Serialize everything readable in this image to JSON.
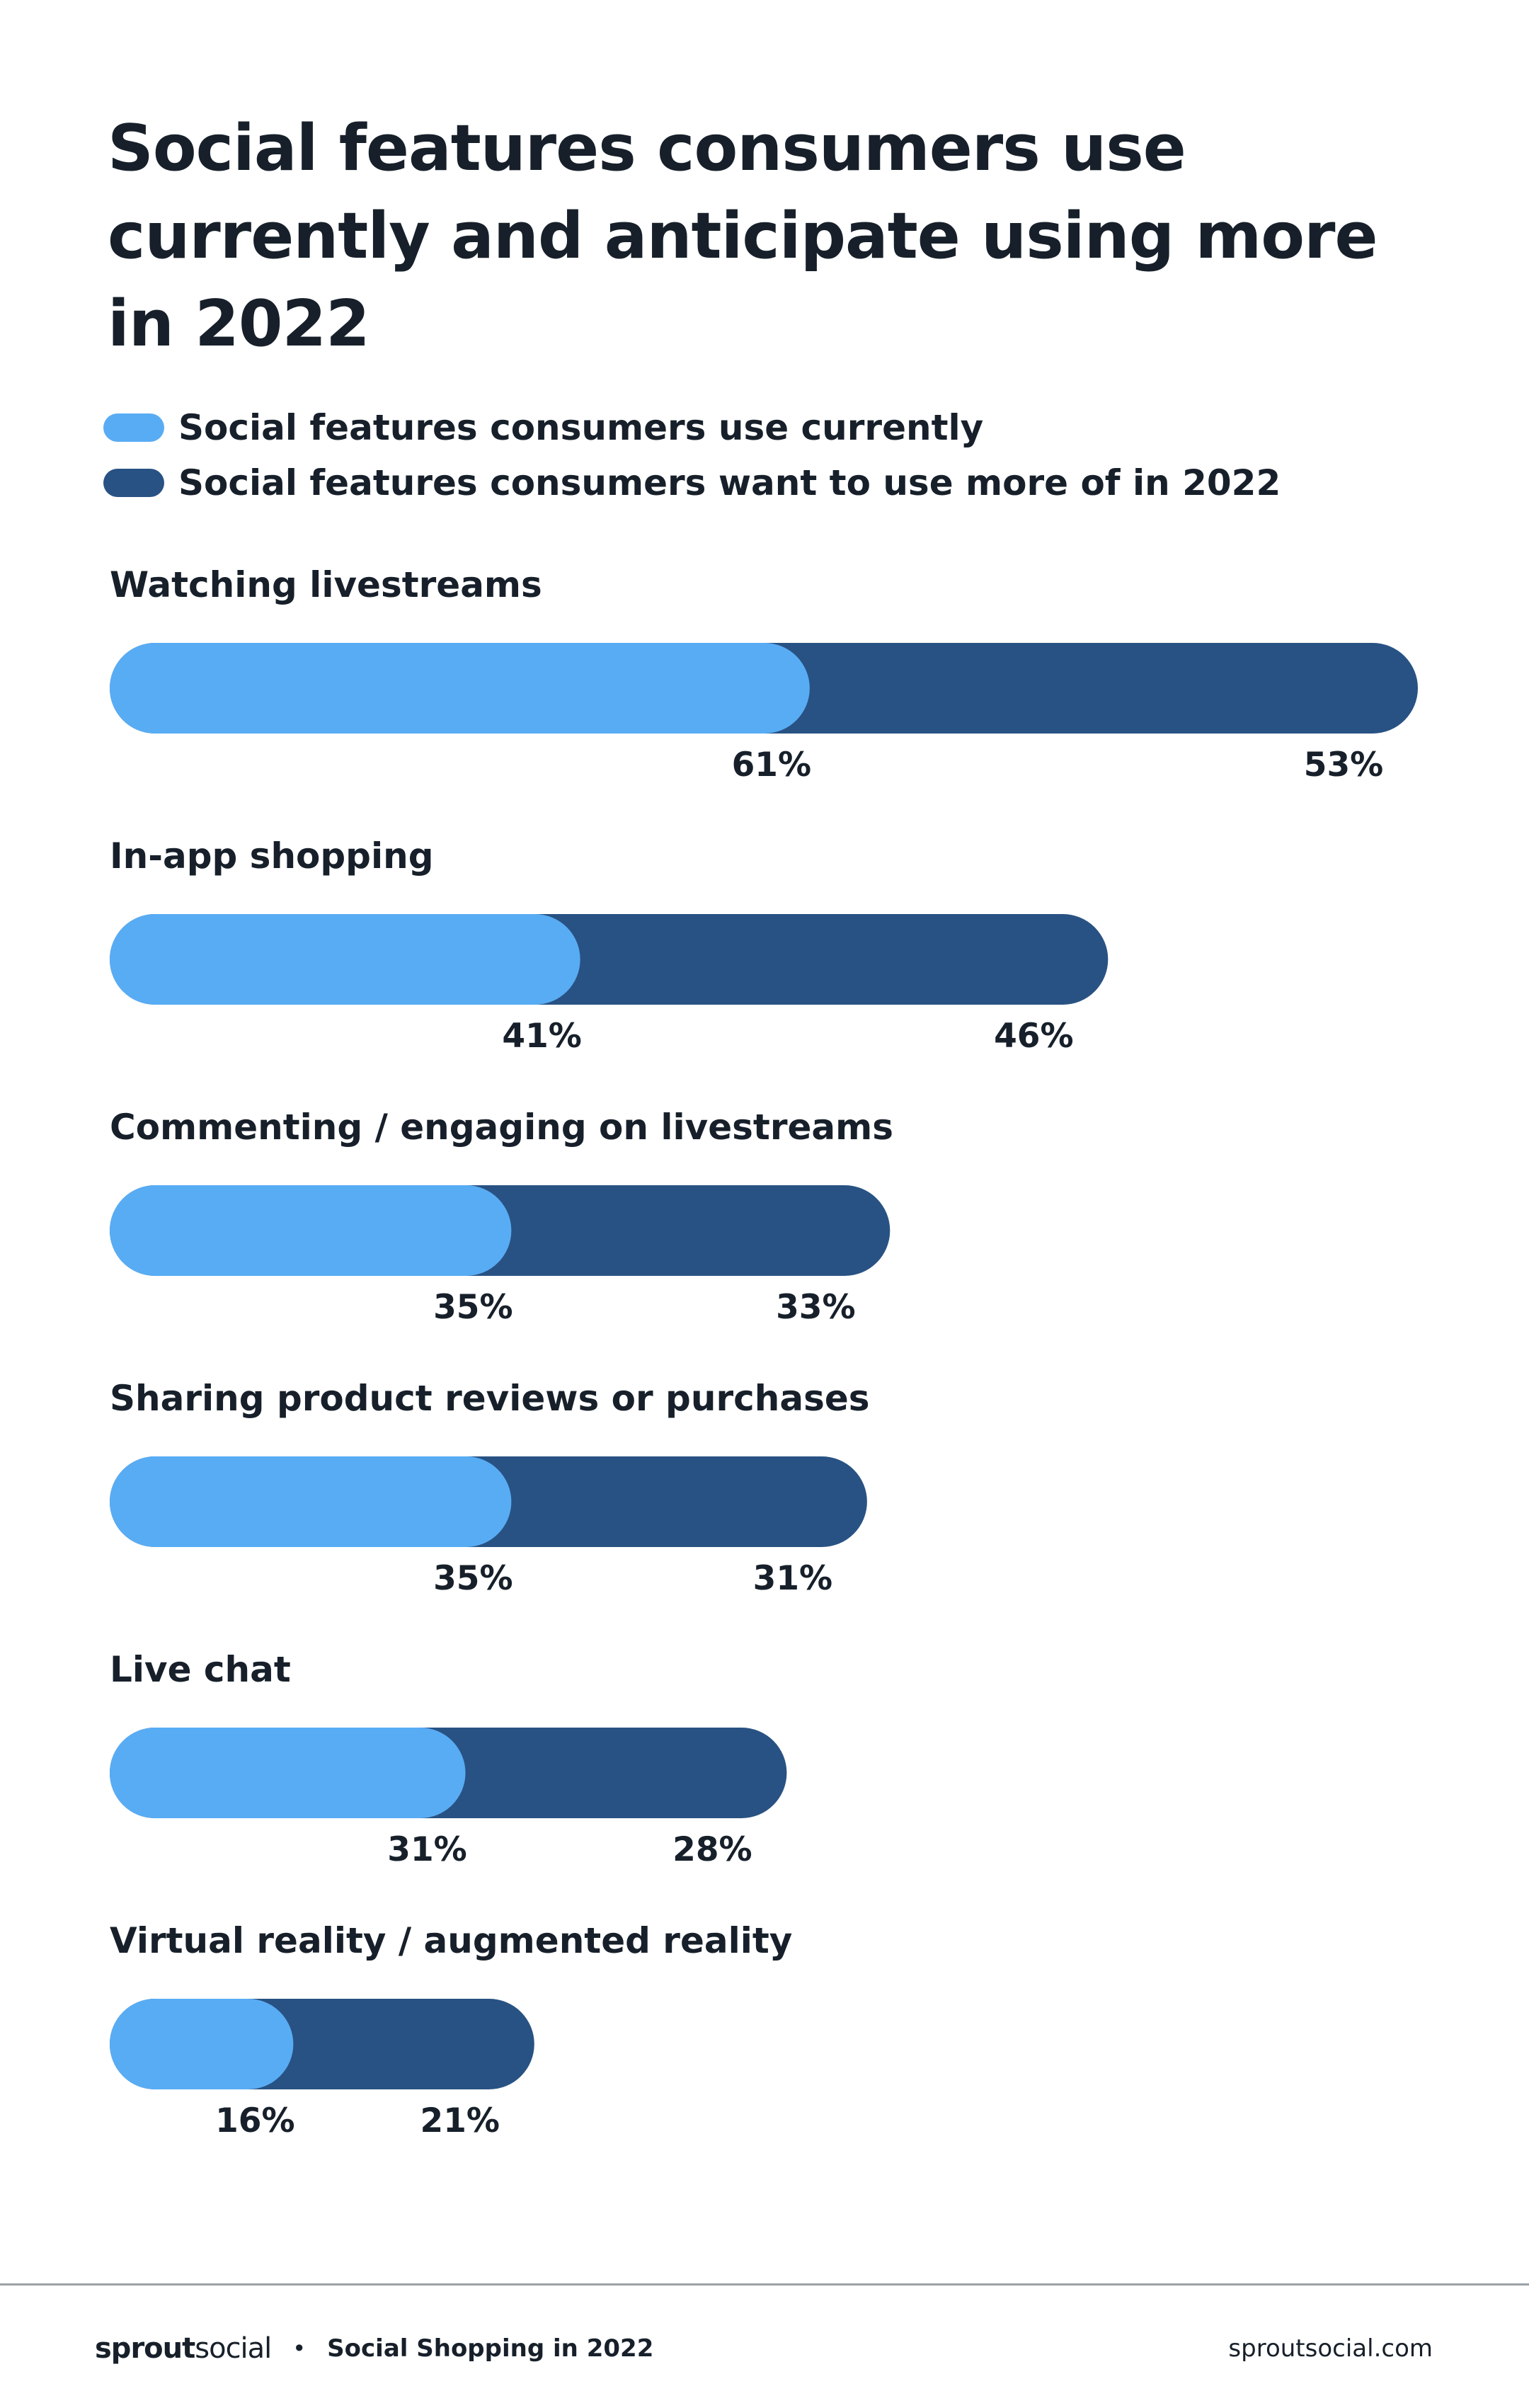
{
  "chart_data": {
    "type": "bar",
    "orientation": "horizontal-stacked",
    "title": "Social features consumers use currently and anticipate using more in 2022",
    "xlabel": "",
    "ylabel": "",
    "unit": "%",
    "grid": false,
    "legend_position": "top-left",
    "categories": [
      "Watching livestreams",
      "In-app shopping",
      "Commenting / engaging on livestreams",
      "Sharing product reviews or purchases",
      "Live chat",
      "Virtual reality / augmented reality"
    ],
    "series": [
      {
        "name": "Social features consumers use currently",
        "color": "#58acf4",
        "values": [
          61,
          41,
          35,
          35,
          31,
          16
        ]
      },
      {
        "name": "Social features consumers want to use more of in 2022",
        "color": "#285283",
        "values": [
          53,
          46,
          33,
          31,
          28,
          21
        ]
      }
    ],
    "xlim": [
      0,
      114
    ]
  },
  "legend": [
    {
      "label": "Social features consumers use currently",
      "color": "#58acf4"
    },
    {
      "label": "Social features consumers want to use more of in 2022",
      "color": "#285283"
    }
  ],
  "footer": {
    "brand_bold": "sprout",
    "brand_light": "social",
    "separator": "•",
    "report": "Social Shopping in 2022",
    "site": "sproutsocial.com"
  }
}
